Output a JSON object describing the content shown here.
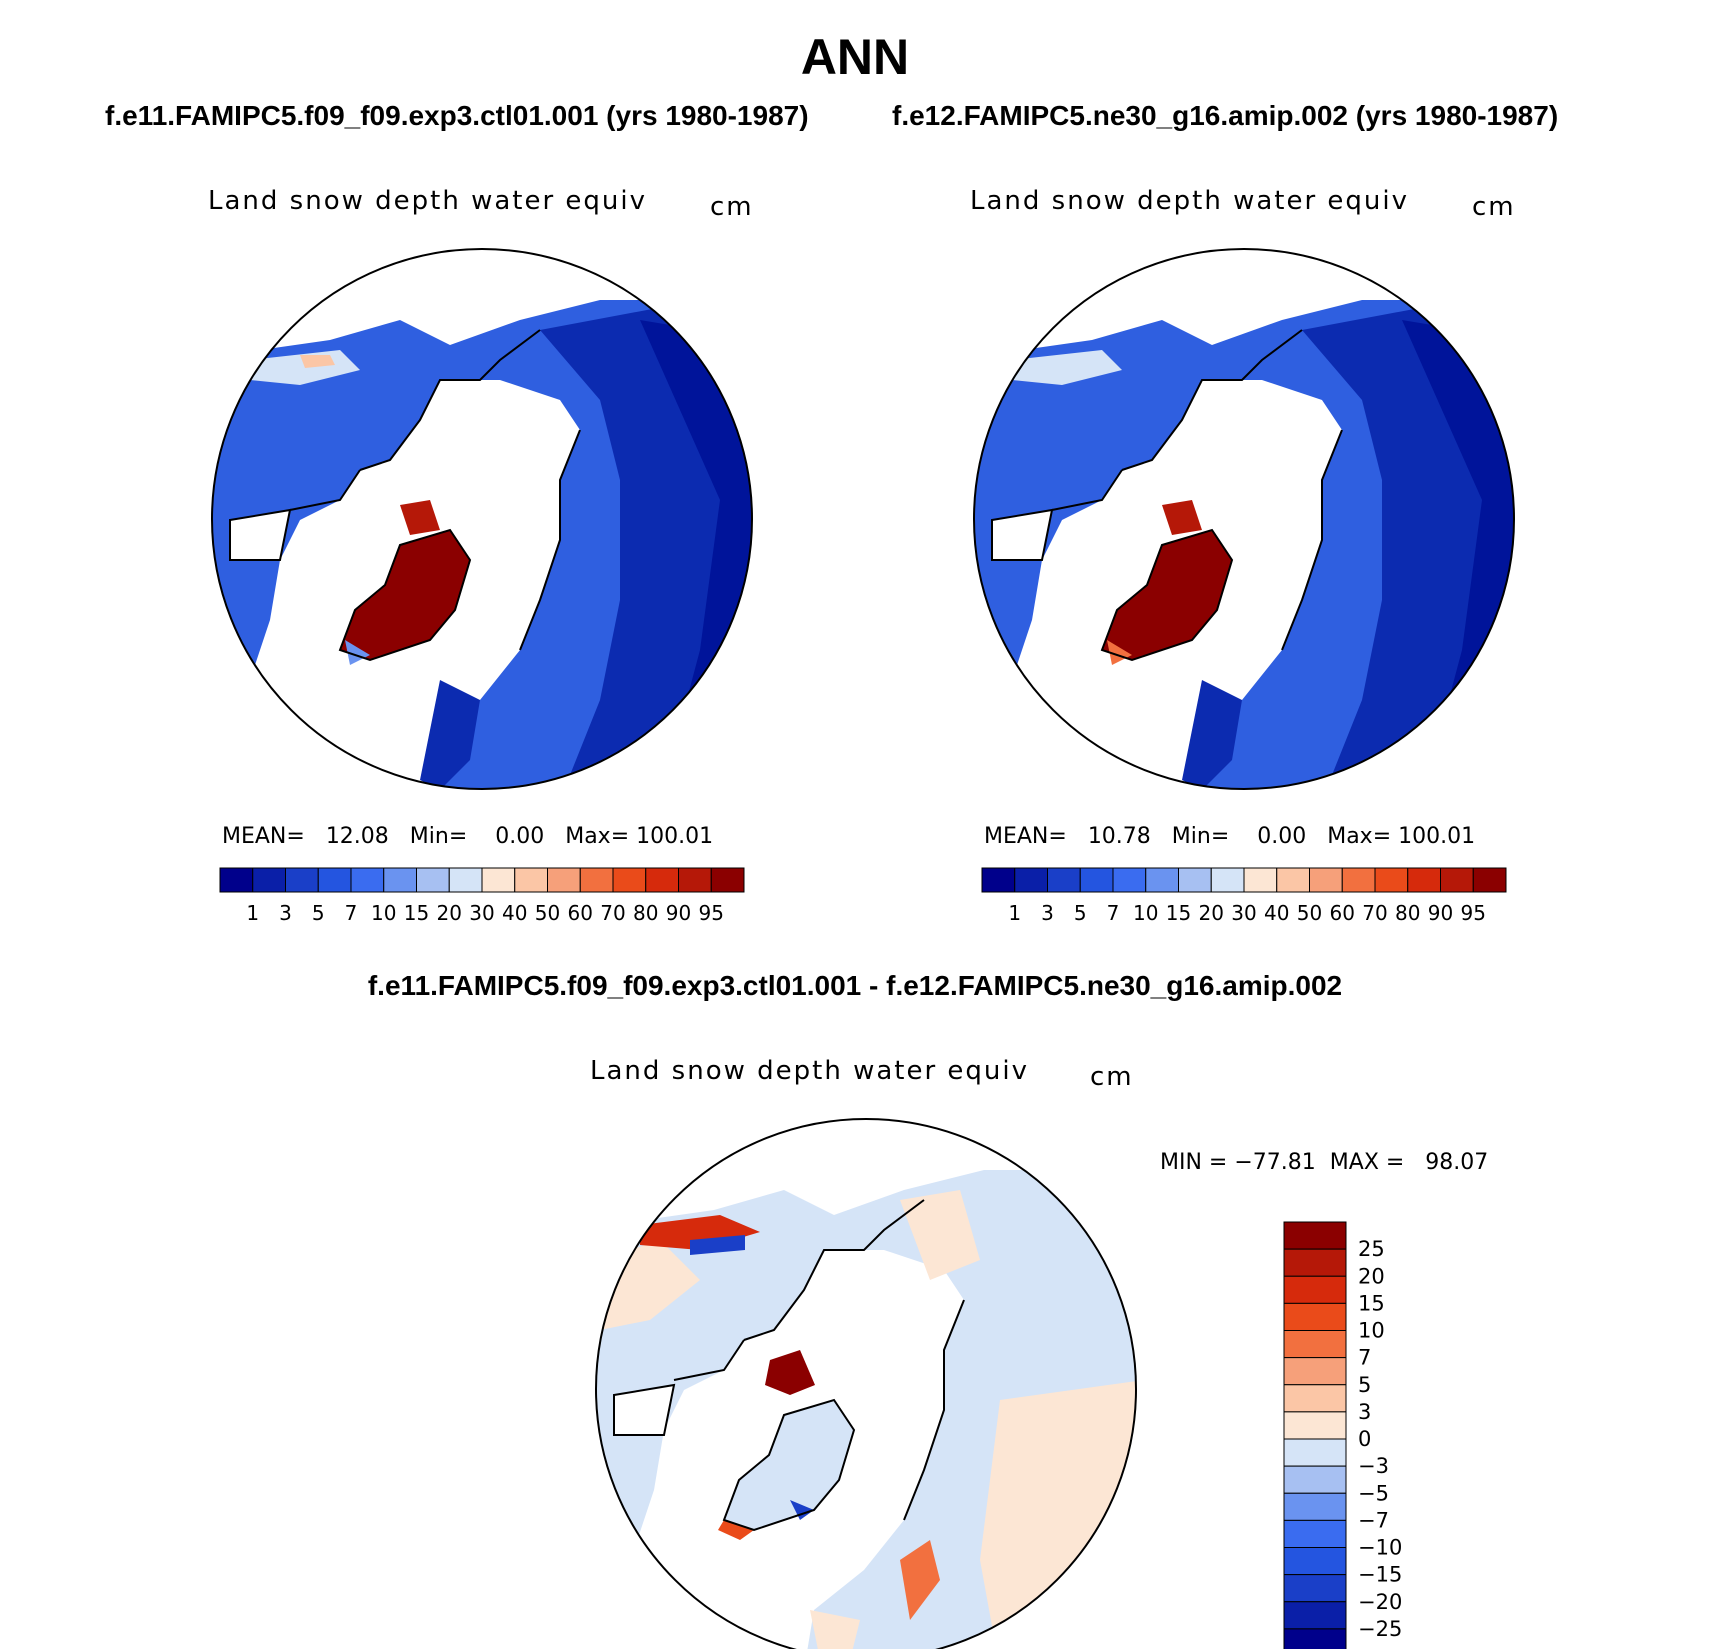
{
  "figure": {
    "title": "ANN",
    "case1_title": "f.e11.FAMIPC5.f09_f09.exp3.ctl01.001 (yrs 1980-1987)",
    "case2_title": "f.e12.FAMIPC5.ne30_g16.amip.002 (yrs 1980-1987)",
    "diff_title": "f.e11.FAMIPC5.f09_f09.exp3.ctl01.001 - f.e12.FAMIPC5.ne30_g16.amip.002"
  },
  "panels": [
    {
      "id": "case1",
      "variable": "Land snow depth water equiv",
      "units": "cm",
      "stats": {
        "mean_label": "MEAN=",
        "mean": "12.08",
        "min_label": "Min=",
        "min": "0.00",
        "max_label": "Max=",
        "max": "100.01"
      }
    },
    {
      "id": "case2",
      "variable": "Land snow depth water equiv",
      "units": "cm",
      "stats": {
        "mean_label": "MEAN=",
        "mean": "10.78",
        "min_label": "Min=",
        "min": "0.00",
        "max_label": "Max=",
        "max": "100.01"
      }
    },
    {
      "id": "diff",
      "variable": "Land snow depth water equiv",
      "units": "cm",
      "stats": {
        "min_label": "MIN =",
        "min": "−77.81",
        "max_label": "MAX =",
        "max": "98.07"
      }
    }
  ],
  "colorbars": {
    "abs_levels": [
      "1",
      "3",
      "5",
      "7",
      "10",
      "15",
      "20",
      "30",
      "40",
      "50",
      "60",
      "70",
      "80",
      "90",
      "95"
    ],
    "abs_colors": [
      "#00008b",
      "#0a1fa8",
      "#1a3fc8",
      "#2455e0",
      "#3a6cf0",
      "#6a93f0",
      "#a7c0f2",
      "#d5e4f7",
      "#fce6d4",
      "#fbc6a6",
      "#f6a07a",
      "#f2703f",
      "#ea4b1a",
      "#d62a0c",
      "#b51808",
      "#8b0000"
    ],
    "diff_levels": [
      "25",
      "20",
      "15",
      "10",
      "7",
      "5",
      "3",
      "0",
      "−3",
      "−5",
      "−7",
      "−10",
      "−15",
      "−20",
      "−25"
    ],
    "diff_colors": [
      "#8b0000",
      "#b51808",
      "#d62a0c",
      "#ea4b1a",
      "#f2703f",
      "#f6a07a",
      "#fbc6a6",
      "#fce6d4",
      "#d5e4f7",
      "#a7c0f2",
      "#6a93f0",
      "#3a6cf0",
      "#2455e0",
      "#1a3fc8",
      "#0a1fa8",
      "#00008b"
    ]
  }
}
